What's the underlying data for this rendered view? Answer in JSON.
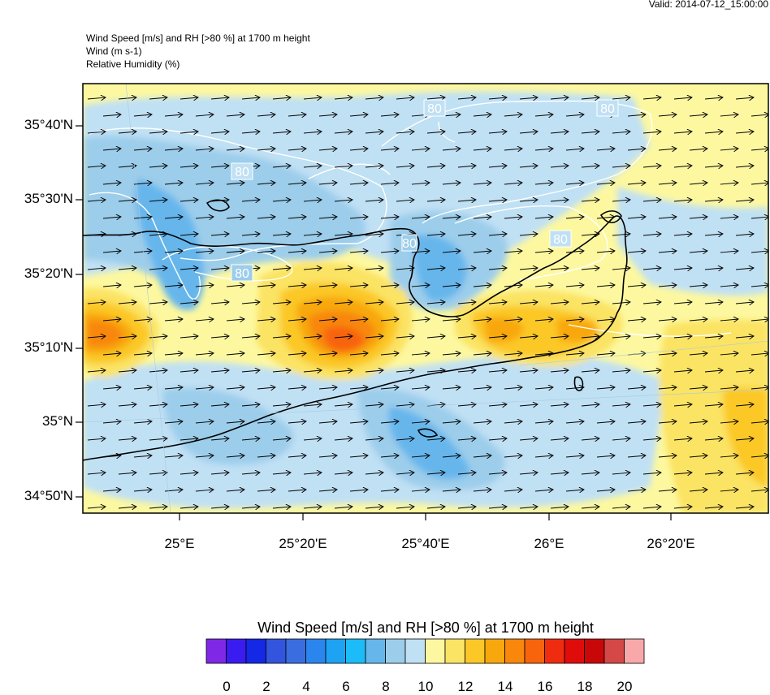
{
  "valid_label": "Valid: 2014-07-12_15:00:00",
  "header": {
    "line1": "Wind Speed [m/s] and RH [>80 %] at 1700 m height",
    "line2": "Wind   (m s-1)",
    "line3": "Relative Humidity   (%)"
  },
  "lat_labels": [
    "35°40'N",
    "35°30'N",
    "35°20'N",
    "35°10'N",
    "35°N",
    "34°50'N"
  ],
  "lon_labels": [
    "25°E",
    "25°20'E",
    "25°40'E",
    "26°E",
    "26°20'E"
  ],
  "contour_labels": [
    "80",
    "80",
    "80",
    "80",
    "80",
    "80"
  ],
  "colorbar": {
    "title": "Wind Speed [m/s] and RH [>80 %] at 1700 m height",
    "tick_labels": [
      "0",
      "2",
      "4",
      "6",
      "8",
      "10",
      "12",
      "14",
      "16",
      "18",
      "20"
    ],
    "colors": [
      "#7f28e6",
      "#3a1cf0",
      "#1428e6",
      "#3355dd",
      "#3a6ee0",
      "#2a86ee",
      "#1ea2f4",
      "#1cbcf8",
      "#66b6ec",
      "#9ccdeb",
      "#c0e0f4",
      "#fdf8a0",
      "#fbe364",
      "#fbc828",
      "#f8a80c",
      "#f8870c",
      "#f8640c",
      "#f02c10",
      "#e00c0c",
      "#c80808",
      "#d44848",
      "#f8a8a8"
    ]
  },
  "palette": {
    "weak_blue": "#c0e0f4",
    "mid_blue": "#9ccdeb",
    "blue": "#66b6ec",
    "strong_blue": "#1cbcf8",
    "yellow": "#fdf8a0",
    "gold": "#fbe364",
    "amber": "#fbc828",
    "orange": "#f8a80c",
    "dark_orange": "#f8870c",
    "red_orange": "#f8640c",
    "coast": "#000000",
    "rh_contour": "#ffffff"
  },
  "wind_direction": "west-to-east"
}
